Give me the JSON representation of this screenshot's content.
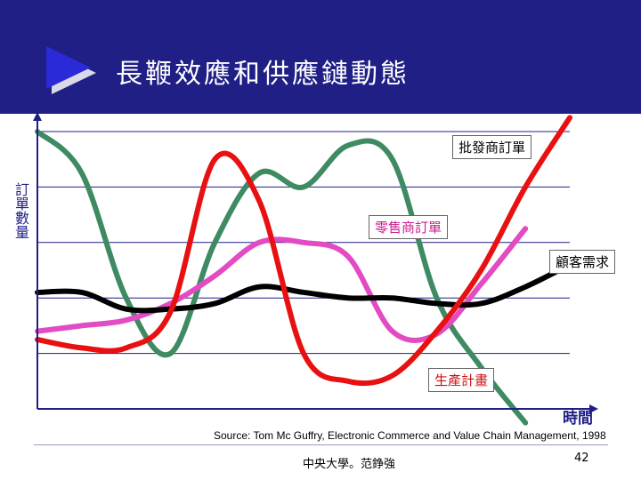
{
  "title": "長鞭效應和供應鏈動態",
  "chart_data": {
    "type": "line",
    "title": "長鞭效應和供應鏈動態",
    "ylabel": "訂單數量",
    "xlabel": "時間",
    "x": [
      0,
      1,
      2,
      3,
      4,
      5,
      6,
      7,
      8,
      9,
      10,
      11,
      12
    ],
    "ylim": [
      0,
      100
    ],
    "xlim": [
      0,
      12
    ],
    "grid": true,
    "axis_labels_shown": false,
    "series": [
      {
        "name": "批發商訂單",
        "color": "#3e8a62",
        "values": [
          100,
          85,
          40,
          20,
          60,
          85,
          80,
          95,
          90,
          40,
          15,
          -5,
          null
        ]
      },
      {
        "name": "零售商訂單",
        "color": "#e24bc3",
        "values": [
          28,
          30,
          32,
          38,
          48,
          60,
          60,
          55,
          28,
          27,
          45,
          65,
          null
        ]
      },
      {
        "name": "顧客需求",
        "color": "#000000",
        "values": [
          42,
          42,
          36,
          36,
          38,
          44,
          42,
          40,
          40,
          38,
          38,
          44,
          52
        ]
      },
      {
        "name": "生產計畫",
        "color": "#e81010",
        "values": [
          25,
          22,
          22,
          35,
          90,
          75,
          20,
          10,
          12,
          28,
          50,
          80,
          105
        ]
      }
    ]
  },
  "labels": {
    "wholesaler": "批發商訂單",
    "retailer": "零售商訂單",
    "customer": "顧客需求",
    "production": "生產計畫"
  },
  "source": "Source: Tom Mc Guffry, Electronic Commerce and Value Chain Management, 1998",
  "footer": {
    "author": "中央大學。范錚強",
    "page": "42"
  },
  "colors": {
    "header_bg": "#1f1f86",
    "arrow": "#2a2ad8",
    "grid": "#1f1f86"
  }
}
